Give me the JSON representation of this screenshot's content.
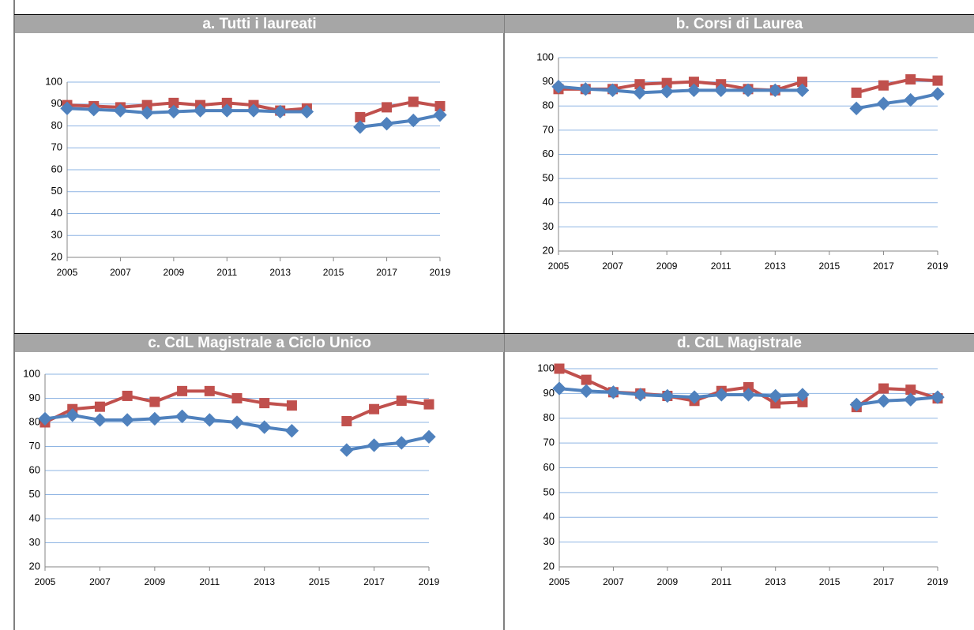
{
  "chart_data": [
    {
      "type": "line",
      "title": "a. Tutti i laureati",
      "x": [
        2005,
        2006,
        2007,
        2008,
        2009,
        2010,
        2011,
        2012,
        2013,
        2014,
        2015,
        2016,
        2017,
        2018,
        2019
      ],
      "xlim": [
        2005,
        2019
      ],
      "xticks": [
        2005,
        2007,
        2009,
        2011,
        2013,
        2015,
        2017,
        2019
      ],
      "ylim": [
        20,
        100
      ],
      "yticks": [
        20,
        30,
        40,
        50,
        60,
        70,
        80,
        90,
        100
      ],
      "grid": true,
      "series": [
        {
          "color": "#c0504d",
          "marker": "square",
          "values": [
            89.5,
            89,
            88.5,
            89.5,
            90.5,
            89.5,
            90.5,
            89.5,
            87,
            88,
            null,
            84,
            88.5,
            91,
            89
          ]
        },
        {
          "color": "#4f81bd",
          "marker": "diamond",
          "values": [
            88,
            87.5,
            87,
            86,
            86.5,
            87,
            87,
            87,
            86.5,
            86.5,
            null,
            79.5,
            81,
            82.5,
            85
          ]
        }
      ]
    },
    {
      "type": "line",
      "title": "b. Corsi di Laurea",
      "x": [
        2005,
        2006,
        2007,
        2008,
        2009,
        2010,
        2011,
        2012,
        2013,
        2014,
        2015,
        2016,
        2017,
        2018,
        2019
      ],
      "xlim": [
        2005,
        2019
      ],
      "xticks": [
        2005,
        2007,
        2009,
        2011,
        2013,
        2015,
        2017,
        2019
      ],
      "ylim": [
        20,
        100
      ],
      "yticks": [
        20,
        30,
        40,
        50,
        60,
        70,
        80,
        90,
        100
      ],
      "grid": true,
      "series": [
        {
          "color": "#c0504d",
          "marker": "square",
          "values": [
            87,
            87,
            87,
            89,
            89.5,
            90,
            89,
            87,
            86.5,
            90,
            null,
            85.5,
            88.5,
            91,
            90.5
          ]
        },
        {
          "color": "#4f81bd",
          "marker": "diamond",
          "values": [
            88,
            87,
            86.5,
            85.5,
            86,
            86.5,
            86.5,
            86.5,
            86.5,
            86.5,
            null,
            79,
            81,
            82.5,
            85
          ]
        }
      ]
    },
    {
      "type": "line",
      "title": "c. CdL Magistrale a Ciclo Unico",
      "x": [
        2005,
        2006,
        2007,
        2008,
        2009,
        2010,
        2011,
        2012,
        2013,
        2014,
        2015,
        2016,
        2017,
        2018,
        2019
      ],
      "xlim": [
        2005,
        2019
      ],
      "xticks": [
        2005,
        2007,
        2009,
        2011,
        2013,
        2015,
        2017,
        2019
      ],
      "ylim": [
        20,
        100
      ],
      "yticks": [
        20,
        30,
        40,
        50,
        60,
        70,
        80,
        90,
        100
      ],
      "grid": true,
      "series": [
        {
          "color": "#c0504d",
          "marker": "square",
          "values": [
            80,
            85.5,
            86.5,
            91,
            88.5,
            93,
            93,
            90,
            88,
            87,
            null,
            80.5,
            85.5,
            89,
            87.5
          ]
        },
        {
          "color": "#4f81bd",
          "marker": "diamond",
          "values": [
            81.5,
            83,
            81,
            81,
            81.5,
            82.5,
            81,
            80,
            78,
            76.5,
            null,
            68.5,
            70.5,
            71.5,
            74
          ]
        }
      ]
    },
    {
      "type": "line",
      "title": "d. CdL Magistrale",
      "x": [
        2005,
        2006,
        2007,
        2008,
        2009,
        2010,
        2011,
        2012,
        2013,
        2014,
        2015,
        2016,
        2017,
        2018,
        2019
      ],
      "xlim": [
        2005,
        2019
      ],
      "xticks": [
        2005,
        2007,
        2009,
        2011,
        2013,
        2015,
        2017,
        2019
      ],
      "ylim": [
        20,
        100
      ],
      "yticks": [
        20,
        30,
        40,
        50,
        60,
        70,
        80,
        90,
        100
      ],
      "grid": true,
      "series": [
        {
          "color": "#c0504d",
          "marker": "square",
          "values": [
            100,
            95.5,
            90.5,
            90,
            89,
            87,
            91,
            92.5,
            86,
            86.5,
            null,
            84.5,
            92,
            91.5,
            88
          ]
        },
        {
          "color": "#4f81bd",
          "marker": "diamond",
          "values": [
            92,
            91,
            90.5,
            89.5,
            89,
            88.5,
            89.5,
            89.5,
            89,
            89.5,
            null,
            85.5,
            87,
            87.5,
            88.5
          ]
        }
      ]
    }
  ]
}
